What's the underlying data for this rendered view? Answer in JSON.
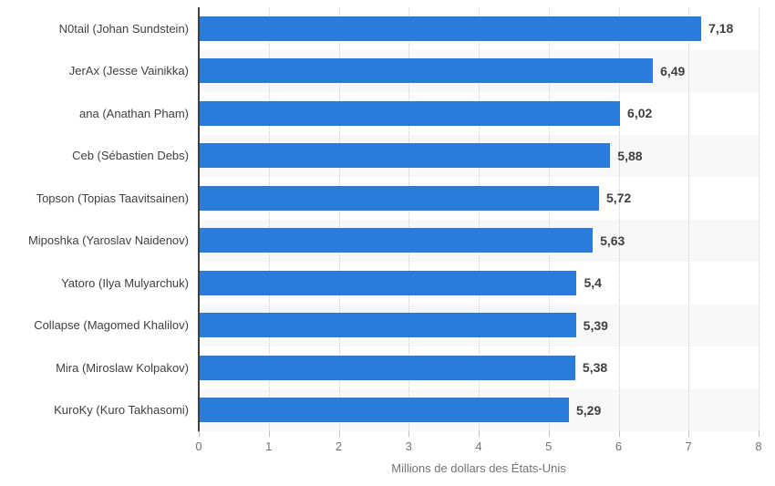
{
  "chart_data": {
    "type": "bar",
    "orientation": "horizontal",
    "xlabel": "Millions de dollars des États-Unis",
    "xlim": [
      0,
      8
    ],
    "xticks": [
      "0",
      "1",
      "2",
      "3",
      "4",
      "5",
      "6",
      "7",
      "8"
    ],
    "grid": "vertical-dotted",
    "legend": "none",
    "bar_color": "#2b7bdb",
    "stripe_color": "#f8f8f8",
    "axis_color": "#3f3f3f",
    "grid_color": "#cccccc",
    "text_color": "#3f3f3f",
    "muted_color": "#737373",
    "rows": [
      {
        "label": "N0tail (Johan Sundstein)",
        "value": 7.18,
        "display_value": "7,18"
      },
      {
        "label": "JerAx (Jesse Vainikka)",
        "value": 6.49,
        "display_value": "6,49"
      },
      {
        "label": "ana (Anathan Pham)",
        "value": 6.02,
        "display_value": "6,02"
      },
      {
        "label": "Ceb (Sébastien Debs)",
        "value": 5.88,
        "display_value": "5,88"
      },
      {
        "label": "Topson (Topias Taavitsainen)",
        "value": 5.72,
        "display_value": "5,72"
      },
      {
        "label": "Miposhka (Yaroslav Naidenov)",
        "value": 5.63,
        "display_value": "5,63"
      },
      {
        "label": "Yatoro (Ilya Mulyarchuk)",
        "value": 5.4,
        "display_value": "5,4"
      },
      {
        "label": "Collapse (Magomed Khalilov)",
        "value": 5.39,
        "display_value": "5,39"
      },
      {
        "label": "Mira (Miroslaw Kolpakov)",
        "value": 5.38,
        "display_value": "5,38"
      },
      {
        "label": "KuroKy (Kuro Takhasomi)",
        "value": 5.29,
        "display_value": "5,29"
      }
    ]
  }
}
